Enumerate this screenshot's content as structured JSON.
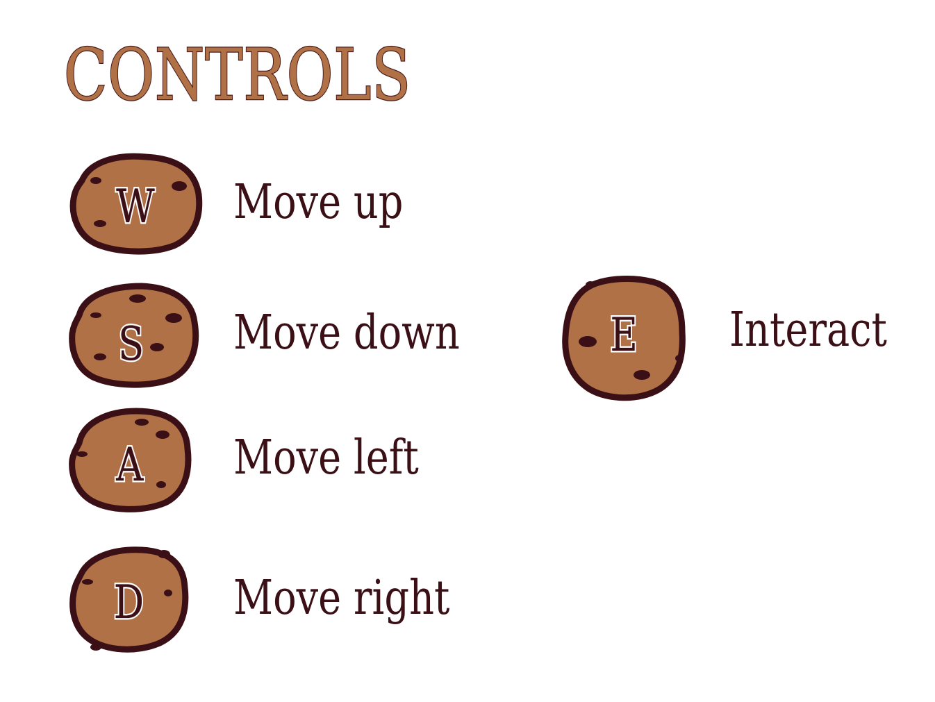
{
  "title": "CONTROLS",
  "colors": {
    "cookie_fill": "#b07147",
    "cookie_outline": "#4a1a1a",
    "chip": "#3a1016",
    "text": "#3a1016",
    "title_fill": "#b07147"
  },
  "controls": [
    {
      "key": "W",
      "action": "Move up",
      "icon": "cookie-key-icon"
    },
    {
      "key": "S",
      "action": "Move down",
      "icon": "cookie-key-icon"
    },
    {
      "key": "A",
      "action": "Move left",
      "icon": "cookie-key-icon"
    },
    {
      "key": "D",
      "action": "Move right",
      "icon": "cookie-key-icon"
    },
    {
      "key": "E",
      "action": "Interact",
      "icon": "cookie-key-icon"
    }
  ]
}
